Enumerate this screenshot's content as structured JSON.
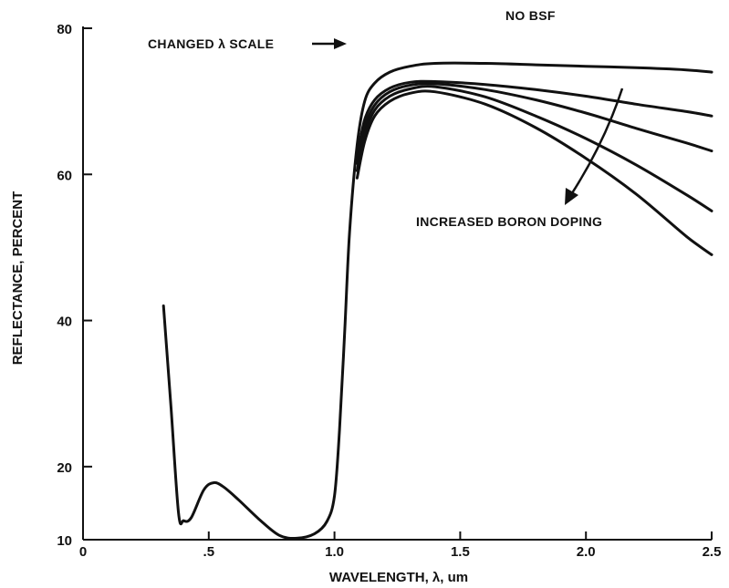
{
  "chart_data": {
    "type": "line",
    "title": "",
    "xlabel": "WAVELENGTH, λ, um",
    "ylabel": "REFLECTANCE, PERCENT",
    "xlim": [
      0,
      2.5
    ],
    "ylim": [
      10,
      80
    ],
    "x_ticks": [
      {
        "value": 0,
        "label": "0"
      },
      {
        "value": 0.5,
        "label": ".5"
      },
      {
        "value": 1.0,
        "label": "1.0"
      },
      {
        "value": 1.5,
        "label": "1.5"
      },
      {
        "value": 2.0,
        "label": "2.0"
      },
      {
        "value": 2.5,
        "label": "2.5"
      }
    ],
    "y_ticks": [
      {
        "value": 10,
        "label": "10"
      },
      {
        "value": 20,
        "label": "20"
      },
      {
        "value": 40,
        "label": "40"
      },
      {
        "value": 60,
        "label": "60"
      },
      {
        "value": 80,
        "label": "80"
      }
    ],
    "grid": false,
    "annotations": {
      "top_right": "NO BSF",
      "scale_note": "CHANGED λ SCALE",
      "doping": "INCREASED BORON DOPING"
    },
    "series": [
      {
        "x": [
          0.32,
          0.35,
          0.38,
          0.4,
          0.43,
          0.48,
          0.52,
          0.56,
          0.62,
          0.7,
          0.78,
          0.85,
          0.92,
          0.97,
          1.0,
          1.02,
          1.04,
          1.06,
          1.09,
          1.12,
          1.16,
          1.22,
          1.3,
          1.4,
          1.6,
          1.8,
          2.0,
          2.2,
          2.4,
          2.5
        ],
        "y": [
          42,
          28,
          13.6,
          12.6,
          13.0,
          16.8,
          17.8,
          17.2,
          15.4,
          12.8,
          10.6,
          10.2,
          10.8,
          12.5,
          16.0,
          25.0,
          38.0,
          52.0,
          64.0,
          70.0,
          72.5,
          74.0,
          74.8,
          75.2,
          75.2,
          75.0,
          74.8,
          74.6,
          74.3,
          74.0
        ]
      },
      {
        "x": [
          1.09,
          1.12,
          1.16,
          1.22,
          1.3,
          1.4,
          1.6,
          1.8,
          2.0,
          2.2,
          2.4,
          2.5
        ],
        "y": [
          62.5,
          67.5,
          70.2,
          71.8,
          72.6,
          72.7,
          72.3,
          71.6,
          70.7,
          69.6,
          68.6,
          68.0
        ]
      },
      {
        "x": [
          1.09,
          1.12,
          1.16,
          1.22,
          1.3,
          1.4,
          1.6,
          1.8,
          2.0,
          2.2,
          2.4,
          2.5
        ],
        "y": [
          61.5,
          66.5,
          69.5,
          71.3,
          72.2,
          72.4,
          71.6,
          70.2,
          68.4,
          66.3,
          64.3,
          63.2
        ]
      },
      {
        "x": [
          1.09,
          1.12,
          1.16,
          1.22,
          1.3,
          1.4,
          1.6,
          1.8,
          2.0,
          2.2,
          2.4,
          2.5
        ],
        "y": [
          60.5,
          65.5,
          68.8,
          70.7,
          71.7,
          72.0,
          70.6,
          68.0,
          64.9,
          61.3,
          57.2,
          55.0
        ]
      },
      {
        "x": [
          1.09,
          1.12,
          1.16,
          1.22,
          1.3,
          1.4,
          1.6,
          1.8,
          2.0,
          2.2,
          2.4,
          2.5
        ],
        "y": [
          59.5,
          64.5,
          68.0,
          70.0,
          71.1,
          71.3,
          69.6,
          66.4,
          62.2,
          57.3,
          51.5,
          49.0
        ]
      }
    ]
  }
}
